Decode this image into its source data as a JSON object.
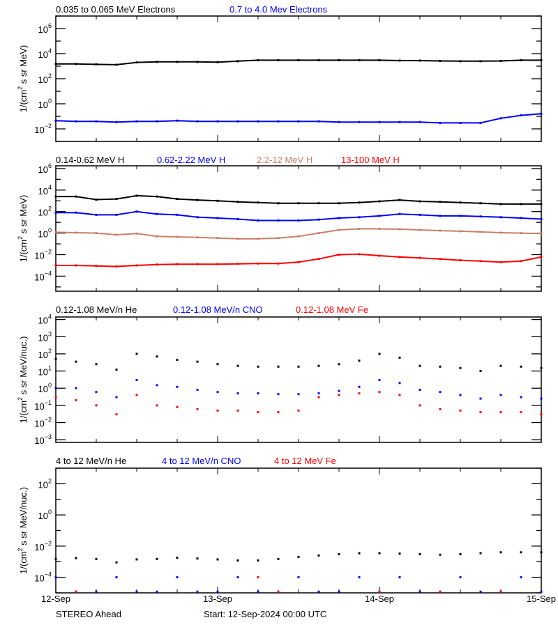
{
  "chart_data": [
    {
      "type": "scatter",
      "ylog": true,
      "ylim": [
        0.001,
        10000000.0
      ],
      "ylabel": "1/(cm² s sr MeV)",
      "ylabel_parts": [
        "1/(cm",
        "2",
        " s sr MeV)"
      ],
      "yticks": [
        {
          "base": "10",
          "exp": "6",
          "value": 1000000.0
        },
        {
          "base": "10",
          "exp": "4",
          "value": 10000.0
        },
        {
          "base": "10",
          "exp": "2",
          "value": 100
        },
        {
          "base": "10",
          "exp": "0",
          "value": 1
        },
        {
          "base": "10",
          "exp": "−2",
          "value": 0.01
        }
      ],
      "legend": [
        {
          "label": "0.035 to 0.065 MeV Electrons",
          "color": "#000000"
        },
        {
          "label": "0.7 to 4.0 Mev Electrons",
          "color": "#0000ff"
        }
      ],
      "series": [
        {
          "name": "0.035 to 0.065 MeV Electrons",
          "color": "#000000",
          "values": [
            1500,
            1500,
            1400,
            1300,
            2000,
            2200,
            2200,
            2200,
            2100,
            2500,
            3000,
            3000,
            3000,
            3000,
            3000,
            3000,
            3000,
            2800,
            2800,
            2600,
            2500,
            2500,
            2600,
            3000,
            3000
          ]
        },
        {
          "name": "0.7 to 4.0 Mev Electrons",
          "color": "#0000ff",
          "values": [
            0.045,
            0.04,
            0.04,
            0.035,
            0.04,
            0.04,
            0.045,
            0.04,
            0.04,
            0.04,
            0.04,
            0.04,
            0.04,
            0.04,
            0.035,
            0.035,
            0.035,
            0.035,
            0.035,
            0.03,
            0.03,
            0.03,
            0.07,
            0.12,
            0.16
          ]
        }
      ]
    },
    {
      "type": "scatter",
      "ylog": true,
      "ylim": [
        4e-06,
        1800000.0
      ],
      "ylabel": "1/(cm² s sr MeV)",
      "ylabel_parts": [
        "1/(cm",
        "2",
        " s sr MeV)"
      ],
      "yticks": [
        {
          "base": "10",
          "exp": "6",
          "value": 1000000.0
        },
        {
          "base": "10",
          "exp": "4",
          "value": 10000.0
        },
        {
          "base": "10",
          "exp": "2",
          "value": 100
        },
        {
          "base": "10",
          "exp": "0",
          "value": 1
        },
        {
          "base": "10",
          "exp": "−2",
          "value": 0.01
        },
        {
          "base": "10",
          "exp": "−4",
          "value": 0.0001
        }
      ],
      "legend": [
        {
          "label": "0.14-0.62 MeV H",
          "color": "#000000"
        },
        {
          "label": "0.62-2.22 MeV H",
          "color": "#0000ff"
        },
        {
          "label": "2.2-12 MeV H",
          "color": "#c8806a"
        },
        {
          "label": "13-100 MeV H",
          "color": "#ff0000"
        }
      ],
      "series": [
        {
          "name": "0.14-0.62 MeV H",
          "color": "#000000",
          "values": [
            2500,
            2500,
            1300,
            1500,
            3000,
            2500,
            1500,
            1200,
            1000,
            800,
            700,
            600,
            600,
            600,
            600,
            700,
            900,
            1200,
            900,
            800,
            700,
            600,
            500,
            500,
            500
          ]
        },
        {
          "name": "0.62-2.22 MeV H",
          "color": "#0000ff",
          "values": [
            80,
            80,
            50,
            50,
            100,
            60,
            50,
            30,
            25,
            20,
            15,
            15,
            15,
            18,
            25,
            30,
            40,
            60,
            50,
            40,
            40,
            35,
            30,
            25,
            20
          ]
        },
        {
          "name": "2.2-12 MeV H",
          "color": "#c8806a",
          "values": [
            1.2,
            1.1,
            1.0,
            0.7,
            0.9,
            0.5,
            0.45,
            0.4,
            0.35,
            0.3,
            0.3,
            0.35,
            0.5,
            1.0,
            2,
            2.5,
            2.5,
            2.3,
            2,
            1.7,
            1.5,
            1.3,
            1.1,
            1,
            0.9
          ]
        },
        {
          "name": "13-100 MeV H",
          "color": "#ff0000",
          "values": [
            0.001,
            0.001,
            0.0009,
            0.0008,
            0.001,
            0.0012,
            0.0013,
            0.0013,
            0.0013,
            0.0014,
            0.0015,
            0.0015,
            0.002,
            0.004,
            0.01,
            0.011,
            0.008,
            0.006,
            0.005,
            0.004,
            0.003,
            0.0025,
            0.002,
            0.0025,
            0.006
          ]
        }
      ]
    },
    {
      "type": "scatter",
      "ylog": true,
      "ylim": [
        0.0007,
        14000
      ],
      "ylabel": "1/(cm² s sr MeV/nuc.)",
      "ylabel_parts": [
        "1/(cm",
        "2",
        " s sr MeV/nuc.)"
      ],
      "yticks": [
        {
          "base": "10",
          "exp": "4",
          "value": 10000.0
        },
        {
          "base": "10",
          "exp": "3",
          "value": 1000
        },
        {
          "base": "10",
          "exp": "2",
          "value": 100
        },
        {
          "base": "10",
          "exp": "1",
          "value": 10
        },
        {
          "base": "10",
          "exp": "0",
          "value": 1
        },
        {
          "base": "10",
          "exp": "−1",
          "value": 0.1
        },
        {
          "base": "10",
          "exp": "−2",
          "value": 0.01
        },
        {
          "base": "10",
          "exp": "−3",
          "value": 0.001
        }
      ],
      "legend": [
        {
          "label": "0.12-1.08 MeV/n He",
          "color": "#000000"
        },
        {
          "label": "0.12-1.08 MeV/n CNO",
          "color": "#0000ff"
        },
        {
          "label": "0.12-1.08 MeV Fe",
          "color": "#ff0000"
        }
      ],
      "series": [
        {
          "name": "0.12-1.08 MeV/n He",
          "color": "#000000",
          "values": [
            50,
            35,
            25,
            12,
            100,
            70,
            45,
            35,
            25,
            20,
            18,
            18,
            18,
            20,
            25,
            40,
            100,
            60,
            20,
            18,
            15,
            10,
            20,
            18,
            15
          ]
        },
        {
          "name": "0.12-1.08 MeV/n CNO",
          "color": "#0000ff",
          "values": [
            1,
            1,
            0.6,
            0.3,
            3,
            1.5,
            1.2,
            0.8,
            0.6,
            0.5,
            0.5,
            0.45,
            0.45,
            0.5,
            0.7,
            1.2,
            3,
            2,
            0.8,
            0.6,
            0.4,
            0.25,
            0.4,
            0.3,
            0.25
          ]
        },
        {
          "name": "0.12-1.08 MeV Fe",
          "color": "#ff0000",
          "values": [
            0.3,
            0.2,
            0.1,
            0.03,
            0.4,
            0.1,
            0.08,
            0.06,
            0.05,
            0.05,
            0.04,
            0.04,
            0.05,
            0.3,
            0.4,
            0.5,
            0.6,
            0.4,
            0.1,
            0.06,
            0.05,
            0.04,
            0.04,
            0.04,
            0.03
          ]
        }
      ]
    },
    {
      "type": "scatter",
      "ylog": true,
      "ylim": [
        1e-05,
        1000
      ],
      "ylabel": "1/(cm² s sr MeV/nuc.)",
      "ylabel_parts": [
        "1/(cm",
        "2",
        " s sr MeV/nuc.)"
      ],
      "yticks": [
        {
          "base": "10",
          "exp": "2",
          "value": 100
        },
        {
          "base": "10",
          "exp": "0",
          "value": 1
        },
        {
          "base": "10",
          "exp": "−2",
          "value": 0.01
        },
        {
          "base": "10",
          "exp": "−4",
          "value": 0.0001
        }
      ],
      "legend": [
        {
          "label": "4 to 12 MeV/n He",
          "color": "#000000"
        },
        {
          "label": "4 to 12 MeV/n CNO",
          "color": "#0000ff"
        },
        {
          "label": "4 to 12 MeV Fe",
          "color": "#ff0000"
        }
      ],
      "series": [
        {
          "name": "4 to 12 MeV/n He",
          "color": "#000000",
          "values": [
            0.0015,
            0.0017,
            0.0015,
            0.0009,
            0.0014,
            0.0015,
            0.0018,
            0.0016,
            0.0014,
            0.0012,
            0.0012,
            0.0015,
            0.002,
            0.0025,
            0.003,
            0.0035,
            0.0035,
            0.0033,
            0.003,
            0.0028,
            0.003,
            0.0035,
            0.004,
            0.004,
            0.004
          ]
        },
        {
          "name": "4 to 12 MeV/n CNO",
          "color": "#0000ff",
          "values": [
            0.0001,
            1.2e-05,
            1.2e-05,
            0.0001,
            1.2e-05,
            1.2e-05,
            0.0001,
            1.2e-05,
            1.2e-05,
            0.0001,
            1.2e-05,
            1.2e-05,
            0.0001,
            1.2e-05,
            1.2e-05,
            0.0001,
            1.2e-05,
            0.0001,
            1.2e-05,
            1.2e-05,
            0.0001,
            1.2e-05,
            1.2e-05,
            0.0001,
            1.2e-05
          ]
        },
        {
          "name": "4 to 12 MeV Fe",
          "color": "#ff0000",
          "values": [
            null,
            1.2e-05,
            null,
            null,
            null,
            null,
            null,
            null,
            null,
            null,
            0.0001,
            1.2e-05,
            null,
            null,
            null,
            null,
            1.2e-05,
            null,
            null,
            1.2e-05,
            null,
            null,
            1.2e-05,
            null,
            null
          ]
        }
      ]
    }
  ],
  "time_axis": {
    "hours": [
      0,
      3,
      6,
      9,
      12,
      15,
      18,
      21,
      24,
      27,
      30,
      33,
      36,
      39,
      42,
      45,
      48,
      51,
      54,
      57,
      60,
      63,
      66,
      69,
      72
    ],
    "range_hours": [
      0,
      72
    ],
    "tick_labels": [
      "12-Sep",
      "13-Sep",
      "14-Sep",
      "15-Sep"
    ],
    "minor_tick_hours": 6
  },
  "footer": {
    "spacecraft": "STEREO Ahead",
    "start": "Start: 12-Sep-2024 00:00 UTC"
  }
}
